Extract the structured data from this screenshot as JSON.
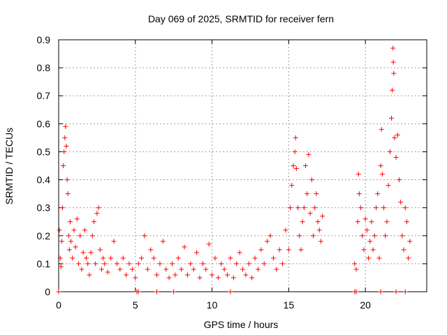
{
  "chart_data": {
    "type": "scatter",
    "title": "Day 069 of 2025, SRMTID for receiver fern",
    "xlabel": "GPS time / hours",
    "ylabel": "SRMTID / TECUs",
    "xlim": [
      0,
      24
    ],
    "ylim": [
      0,
      0.9
    ],
    "xticks": [
      0,
      5,
      10,
      15,
      20
    ],
    "xtick_labels": [
      "0",
      "5",
      "10",
      "15",
      "20"
    ],
    "yticks": [
      0,
      0.1,
      0.2,
      0.3,
      0.4,
      0.5,
      0.6,
      0.7,
      0.8,
      0.9
    ],
    "ytick_labels": [
      "0",
      "0.1",
      "0.2",
      "0.3",
      "0.4",
      "0.5",
      "0.6",
      "0.7",
      "0.8",
      "0.9"
    ],
    "grid": true,
    "marker": "+",
    "series": [
      {
        "name": "SRMTID",
        "color": "#ff0000",
        "points": [
          [
            0.05,
            0.22
          ],
          [
            0.1,
            0.12
          ],
          [
            0.15,
            0.09
          ],
          [
            0.2,
            0.18
          ],
          [
            0.25,
            0.3
          ],
          [
            0.3,
            0.45
          ],
          [
            0.35,
            0.5
          ],
          [
            0.4,
            0.55
          ],
          [
            0.45,
            0.59
          ],
          [
            0.5,
            0.52
          ],
          [
            0.55,
            0.4
          ],
          [
            0.6,
            0.35
          ],
          [
            0.65,
            0.2
          ],
          [
            0.7,
            0.15
          ],
          [
            0.75,
            0.25
          ],
          [
            0.8,
            0.18
          ],
          [
            0.9,
            0.12
          ],
          [
            1.0,
            0.22
          ],
          [
            1.1,
            0.16
          ],
          [
            1.2,
            0.26
          ],
          [
            1.3,
            0.1
          ],
          [
            1.4,
            0.2
          ],
          [
            1.5,
            0.08
          ],
          [
            1.6,
            0.14
          ],
          [
            1.7,
            0.22
          ],
          [
            1.8,
            0.12
          ],
          [
            1.9,
            0.1
          ],
          [
            2.0,
            0.06
          ],
          [
            2.1,
            0.14
          ],
          [
            2.2,
            0.2
          ],
          [
            2.3,
            0.25
          ],
          [
            2.4,
            0.1
          ],
          [
            2.5,
            0.28
          ],
          [
            2.6,
            0.3
          ],
          [
            2.7,
            0.15
          ],
          [
            2.8,
            0.08
          ],
          [
            2.9,
            0.12
          ],
          [
            3.0,
            0.1
          ],
          [
            3.2,
            0.07
          ],
          [
            3.4,
            0.12
          ],
          [
            3.6,
            0.18
          ],
          [
            3.8,
            0.1
          ],
          [
            4.0,
            0.08
          ],
          [
            4.2,
            0.12
          ],
          [
            4.4,
            0.06
          ],
          [
            4.6,
            0.1
          ],
          [
            4.8,
            0.08
          ],
          [
            5.0,
            0.05
          ],
          [
            5.2,
            0.1
          ],
          [
            5.4,
            0.12
          ],
          [
            5.6,
            0.2
          ],
          [
            5.8,
            0.08
          ],
          [
            6.0,
            0.15
          ],
          [
            6.2,
            0.12
          ],
          [
            6.4,
            0.06
          ],
          [
            6.6,
            0.1
          ],
          [
            6.8,
            0.18
          ],
          [
            7.0,
            0.08
          ],
          [
            7.2,
            0.05
          ],
          [
            7.4,
            0.1
          ],
          [
            7.6,
            0.06
          ],
          [
            7.8,
            0.12
          ],
          [
            8.0,
            0.08
          ],
          [
            8.2,
            0.16
          ],
          [
            8.4,
            0.06
          ],
          [
            8.6,
            0.1
          ],
          [
            8.8,
            0.08
          ],
          [
            9.0,
            0.14
          ],
          [
            9.2,
            0.05
          ],
          [
            9.4,
            0.1
          ],
          [
            9.6,
            0.08
          ],
          [
            9.8,
            0.17
          ],
          [
            10.0,
            0.06
          ],
          [
            10.2,
            0.12
          ],
          [
            10.4,
            0.05
          ],
          [
            10.6,
            0.1
          ],
          [
            10.8,
            0.08
          ],
          [
            11.0,
            0.06
          ],
          [
            11.2,
            0.12
          ],
          [
            11.4,
            0.05
          ],
          [
            11.6,
            0.1
          ],
          [
            11.8,
            0.14
          ],
          [
            12.0,
            0.08
          ],
          [
            12.2,
            0.06
          ],
          [
            12.4,
            0.1
          ],
          [
            12.6,
            0.05
          ],
          [
            12.8,
            0.12
          ],
          [
            13.0,
            0.08
          ],
          [
            13.2,
            0.15
          ],
          [
            13.4,
            0.1
          ],
          [
            13.6,
            0.18
          ],
          [
            13.8,
            0.2
          ],
          [
            14.0,
            0.12
          ],
          [
            14.2,
            0.08
          ],
          [
            14.4,
            0.15
          ],
          [
            14.6,
            0.1
          ],
          [
            14.8,
            0.22
          ],
          [
            15.0,
            0.15
          ],
          [
            15.1,
            0.3
          ],
          [
            15.2,
            0.38
          ],
          [
            15.3,
            0.45
          ],
          [
            15.4,
            0.5
          ],
          [
            15.45,
            0.55
          ],
          [
            15.5,
            0.44
          ],
          [
            15.6,
            0.3
          ],
          [
            15.7,
            0.2
          ],
          [
            15.8,
            0.15
          ],
          [
            15.9,
            0.25
          ],
          [
            16.0,
            0.3
          ],
          [
            16.1,
            0.45
          ],
          [
            16.2,
            0.35
          ],
          [
            16.3,
            0.49
          ],
          [
            16.4,
            0.28
          ],
          [
            16.5,
            0.4
          ],
          [
            16.6,
            0.2
          ],
          [
            16.7,
            0.3
          ],
          [
            16.8,
            0.35
          ],
          [
            16.9,
            0.25
          ],
          [
            17.0,
            0.22
          ],
          [
            17.1,
            0.18
          ],
          [
            17.2,
            0.27
          ],
          [
            19.3,
            0.1
          ],
          [
            19.4,
            0.08
          ],
          [
            19.5,
            0.25
          ],
          [
            19.55,
            0.42
          ],
          [
            19.6,
            0.35
          ],
          [
            19.7,
            0.3
          ],
          [
            19.8,
            0.2
          ],
          [
            19.9,
            0.15
          ],
          [
            20.0,
            0.26
          ],
          [
            20.1,
            0.22
          ],
          [
            20.2,
            0.12
          ],
          [
            20.3,
            0.18
          ],
          [
            20.4,
            0.25
          ],
          [
            20.5,
            0.15
          ],
          [
            20.6,
            0.2
          ],
          [
            20.7,
            0.3
          ],
          [
            20.8,
            0.35
          ],
          [
            20.9,
            0.12
          ],
          [
            21.0,
            0.45
          ],
          [
            21.05,
            0.58
          ],
          [
            21.1,
            0.42
          ],
          [
            21.2,
            0.3
          ],
          [
            21.3,
            0.2
          ],
          [
            21.4,
            0.25
          ],
          [
            21.5,
            0.38
          ],
          [
            21.6,
            0.5
          ],
          [
            21.7,
            0.62
          ],
          [
            21.75,
            0.72
          ],
          [
            21.8,
            0.87
          ],
          [
            21.82,
            0.82
          ],
          [
            21.85,
            0.78
          ],
          [
            21.9,
            0.55
          ],
          [
            22.0,
            0.48
          ],
          [
            22.1,
            0.56
          ],
          [
            22.2,
            0.4
          ],
          [
            22.3,
            0.32
          ],
          [
            22.4,
            0.2
          ],
          [
            22.5,
            0.15
          ],
          [
            22.6,
            0.3
          ],
          [
            22.7,
            0.25
          ],
          [
            22.8,
            0.12
          ],
          [
            22.9,
            0.18
          ]
        ]
      }
    ],
    "zero_points_x": [
      0.0,
      5.1,
      5.2,
      6.4,
      7.5,
      11.2,
      19.3,
      19.4,
      21.0,
      22.0,
      22.6
    ]
  }
}
